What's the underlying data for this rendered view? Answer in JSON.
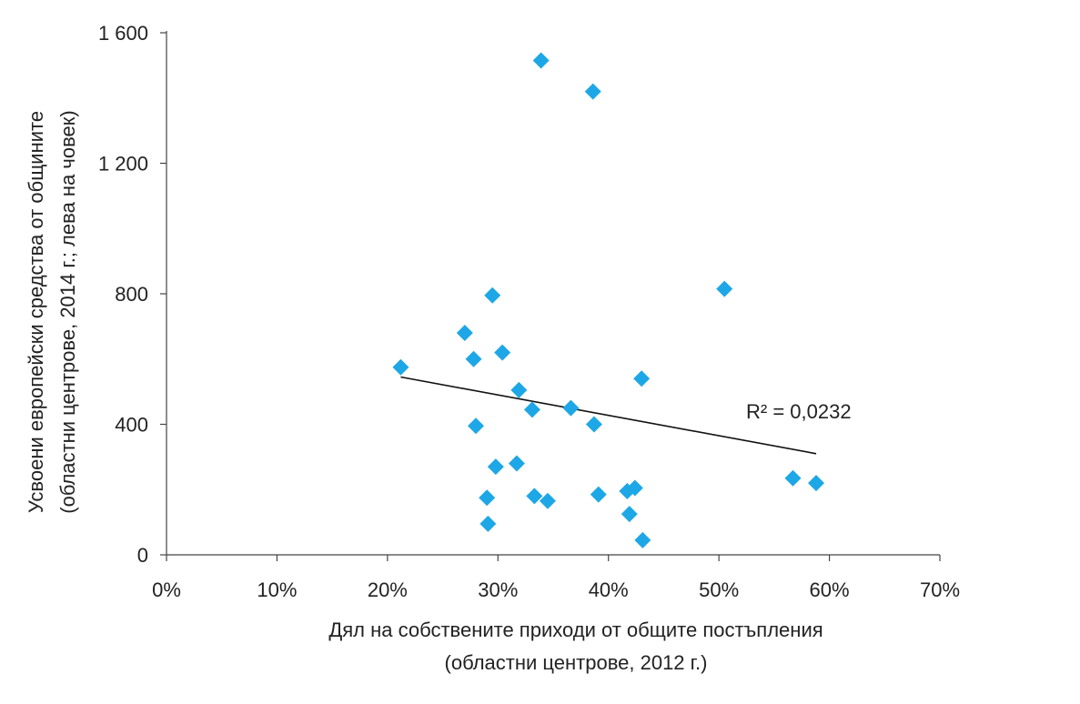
{
  "chart_data": {
    "type": "scatter",
    "title": "",
    "xlabel": [
      "Дял на собствените приходи от общите постъпления",
      "(областни центрове, 2012 г.)"
    ],
    "ylabel": [
      "Усвоени европейски средства от общините",
      "(областни центрове, 2014 г.; лева на човек)"
    ],
    "xlim": [
      0,
      0.7
    ],
    "ylim": [
      0,
      1600
    ],
    "xticks": [
      0,
      0.1,
      0.2,
      0.3,
      0.4,
      0.5,
      0.6,
      0.7
    ],
    "xtick_labels": [
      "0%",
      "10%",
      "20%",
      "30%",
      "40%",
      "50%",
      "60%",
      "70%"
    ],
    "yticks": [
      0,
      400,
      800,
      1200,
      1600
    ],
    "ytick_labels": [
      "0",
      "400",
      "800",
      "1 200",
      "1 600"
    ],
    "grid": false,
    "marker": "diamond",
    "series": [
      {
        "color": "#1ea7e6",
        "x": [
          0.212,
          0.27,
          0.278,
          0.28,
          0.29,
          0.291,
          0.295,
          0.298,
          0.304,
          0.317,
          0.319,
          0.331,
          0.333,
          0.339,
          0.345,
          0.366,
          0.386,
          0.387,
          0.391,
          0.417,
          0.419,
          0.424,
          0.43,
          0.431,
          0.505,
          0.567,
          0.588
        ],
        "y": [
          575,
          680,
          600,
          395,
          175,
          95,
          795,
          270,
          620,
          280,
          505,
          445,
          180,
          1515,
          165,
          450,
          1420,
          400,
          185,
          195,
          125,
          205,
          540,
          45,
          815,
          235,
          220
        ]
      }
    ],
    "trendline": {
      "x": [
        0.212,
        0.588
      ],
      "y": [
        545,
        310
      ],
      "color": "#111111",
      "label": "R² = 0,0232"
    }
  }
}
